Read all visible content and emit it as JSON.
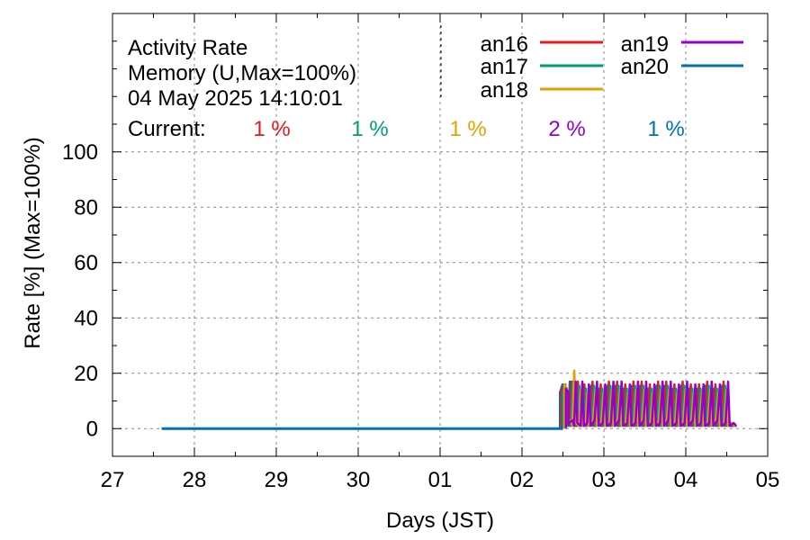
{
  "chart_data": {
    "type": "line",
    "title_lines": [
      "Activity Rate",
      "Memory (U,Max=100%)",
      "04 May 2025 14:10:01"
    ],
    "current_label": "Current:",
    "xlabel": "Days (JST)",
    "ylabel": "Rate [%]  (Max=100%)",
    "x_ticks": [
      {
        "x": 0,
        "label": "27"
      },
      {
        "x": 1,
        "label": "28"
      },
      {
        "x": 2,
        "label": "29"
      },
      {
        "x": 3,
        "label": "30"
      },
      {
        "x": 4,
        "label": "01"
      },
      {
        "x": 5,
        "label": "02"
      },
      {
        "x": 6,
        "label": "03"
      },
      {
        "x": 7,
        "label": "04"
      },
      {
        "x": 8,
        "label": "05"
      }
    ],
    "xlim": [
      0,
      8
    ],
    "y_ticks": [
      0,
      20,
      40,
      60,
      80,
      100
    ],
    "ylim": [
      -10,
      150
    ],
    "grid": true,
    "legend_position": "top-right",
    "series": [
      {
        "name": "an16",
        "color": "#e41a1c",
        "current": "1 %"
      },
      {
        "name": "an17",
        "color": "#009e73",
        "current": "1 %"
      },
      {
        "name": "an18",
        "color": "#e69f00",
        "current": "1 %"
      },
      {
        "name": "an19",
        "color": "#9400d3",
        "current": "2 %"
      },
      {
        "name": "an20",
        "color": "#0072b2",
        "current": "1 %"
      }
    ],
    "flat_segment": {
      "x_start": 0.6,
      "x_end": 5.5,
      "y": 0
    },
    "active_period": {
      "x_start": 5.5,
      "x_end": 7.62
    },
    "active_points": [
      [
        5.5,
        0
      ],
      [
        5.5,
        16
      ],
      [
        5.53,
        16
      ],
      [
        5.53,
        2
      ],
      [
        5.58,
        3
      ],
      [
        5.6,
        1
      ],
      [
        5.62,
        24
      ],
      [
        5.64,
        2
      ],
      [
        5.68,
        1
      ],
      [
        5.7,
        17
      ],
      [
        5.72,
        1
      ],
      [
        5.76,
        2
      ],
      [
        5.78,
        16
      ],
      [
        5.8,
        1
      ],
      [
        5.85,
        3
      ],
      [
        5.88,
        17
      ],
      [
        5.9,
        1
      ],
      [
        5.95,
        2
      ],
      [
        5.98,
        16
      ],
      [
        6.0,
        1
      ],
      [
        6.05,
        2
      ],
      [
        6.08,
        17
      ],
      [
        6.1,
        1
      ],
      [
        6.15,
        3
      ],
      [
        6.18,
        17
      ],
      [
        6.2,
        1
      ],
      [
        6.25,
        2
      ],
      [
        6.28,
        16
      ],
      [
        6.3,
        1
      ],
      [
        6.35,
        2
      ],
      [
        6.38,
        17
      ],
      [
        6.4,
        1
      ],
      [
        6.45,
        3
      ],
      [
        6.48,
        17
      ],
      [
        6.5,
        1
      ],
      [
        6.55,
        2
      ],
      [
        6.58,
        16
      ],
      [
        6.6,
        1
      ],
      [
        6.65,
        2
      ],
      [
        6.68,
        17
      ],
      [
        6.7,
        1
      ],
      [
        6.75,
        3
      ],
      [
        6.78,
        17
      ],
      [
        6.8,
        1
      ],
      [
        6.85,
        2
      ],
      [
        6.88,
        16
      ],
      [
        6.9,
        1
      ],
      [
        6.95,
        2
      ],
      [
        6.98,
        17
      ],
      [
        7.0,
        1
      ],
      [
        7.05,
        3
      ],
      [
        7.08,
        16
      ],
      [
        7.1,
        1
      ],
      [
        7.15,
        2
      ],
      [
        7.18,
        16
      ],
      [
        7.2,
        1
      ],
      [
        7.25,
        2
      ],
      [
        7.28,
        17
      ],
      [
        7.3,
        1
      ],
      [
        7.35,
        3
      ],
      [
        7.38,
        16
      ],
      [
        7.4,
        1
      ],
      [
        7.45,
        2
      ],
      [
        7.48,
        17
      ],
      [
        7.5,
        1
      ],
      [
        7.55,
        2
      ],
      [
        7.58,
        1
      ],
      [
        7.62,
        1
      ]
    ]
  }
}
